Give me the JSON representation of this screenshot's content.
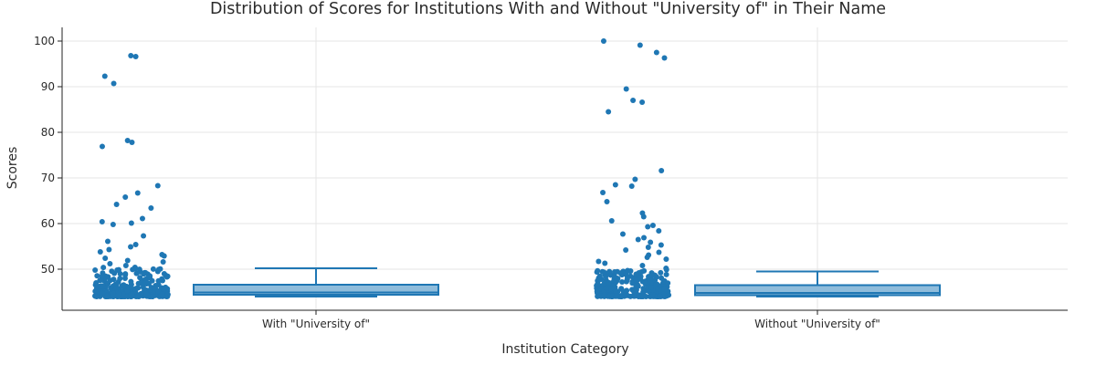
{
  "chart_data": {
    "type": "box",
    "title": "Distribution of Scores for Institutions With and Without \"University of\" in Their Name",
    "xlabel": "Institution Category",
    "ylabel": "Scores",
    "categories": [
      "With \"University of\"",
      "Without \"University of\""
    ],
    "ylim": [
      41,
      103
    ],
    "yticks": [
      50,
      60,
      70,
      80,
      90,
      100
    ],
    "grid": true,
    "color": "#1f77b4",
    "box_fill": "#8fbcdb",
    "boxes": [
      {
        "category": "With \"University of\"",
        "lower_whisker": 44,
        "q1": 44.4,
        "median": 44.9,
        "q3": 46.6,
        "upper_whisker": 50.2
      },
      {
        "category": "Without \"University of\"",
        "lower_whisker": 44,
        "q1": 44.3,
        "median": 44.8,
        "q3": 46.5,
        "upper_whisker": 49.5
      }
    ],
    "outliers": [
      {
        "category": "With \"University of\"",
        "values": [
          96.8,
          96.6,
          92.3,
          90.7,
          78.2,
          77.8,
          76.9,
          68.3,
          66.7,
          65.8,
          64.2,
          63.4,
          61.1,
          60.4,
          60.1,
          59.8,
          57.3,
          56.1,
          55.4,
          54.9,
          54.3,
          53.8,
          53.2,
          52.9,
          52.4,
          51.9,
          51.6,
          51.2,
          50.8,
          50.4
        ]
      },
      {
        "category": "Without \"University of\"",
        "values": [
          100.0,
          99.1,
          97.5,
          96.3,
          89.5,
          87.0,
          86.6,
          84.5,
          71.6,
          69.7,
          68.5,
          68.2,
          66.8,
          64.8,
          62.3,
          61.5,
          60.6,
          59.6,
          59.3,
          58.4,
          57.7,
          56.9,
          56.5,
          55.9,
          55.3,
          54.8,
          54.2,
          53.7,
          53.1,
          52.6,
          52.2,
          51.7,
          51.3,
          50.8,
          50.2,
          49.9
        ]
      }
    ]
  }
}
